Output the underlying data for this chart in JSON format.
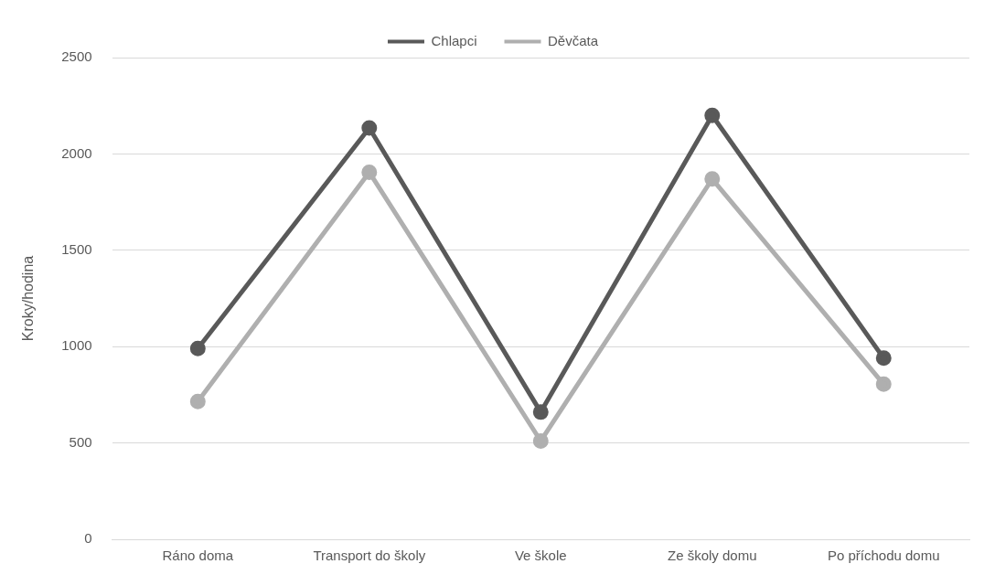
{
  "chart_data": {
    "type": "line",
    "ylabel": "Kroky/hodina",
    "categories": [
      "Ráno doma",
      "Transport do školy",
      "Ve škole",
      "Ze školy domu",
      "Po příchodu domu"
    ],
    "series": [
      {
        "name": "Chlapci",
        "color": "#595959",
        "values": [
          990,
          2135,
          660,
          2200,
          940
        ]
      },
      {
        "name": "Děvčata",
        "color": "#afafaf",
        "values": [
          715,
          1905,
          510,
          1870,
          805
        ]
      }
    ],
    "ylim": [
      0,
      2500
    ],
    "yticks": [
      0,
      500,
      1000,
      1500,
      2000,
      2500
    ],
    "grid": "y",
    "legend": "top",
    "marker": "circle",
    "line_style": "solid"
  }
}
